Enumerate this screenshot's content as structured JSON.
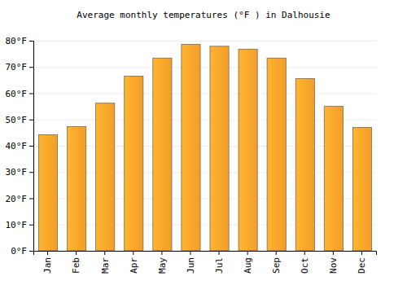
{
  "chart_data": {
    "type": "bar",
    "title": "Average monthly temperatures (°F ) in Dalhousie",
    "categories": [
      "Jan",
      "Feb",
      "Mar",
      "Apr",
      "May",
      "Jun",
      "Jul",
      "Aug",
      "Sep",
      "Oct",
      "Nov",
      "Dec"
    ],
    "values": [
      44.2,
      47.3,
      56.2,
      66.5,
      73.4,
      78.6,
      77.9,
      76.8,
      73.4,
      65.6,
      55.0,
      47.0
    ],
    "color": "#ffa62b",
    "ylim": [
      0,
      80
    ],
    "yticks": [
      {
        "value": 0,
        "label": "0°F"
      },
      {
        "value": 10,
        "label": "10°F"
      },
      {
        "value": 20,
        "label": "20°F"
      },
      {
        "value": 30,
        "label": "30°F"
      },
      {
        "value": 40,
        "label": "40°F"
      },
      {
        "value": 50,
        "label": "50°F"
      },
      {
        "value": 60,
        "label": "60°F"
      },
      {
        "value": 70,
        "label": "70°F"
      },
      {
        "value": 80,
        "label": "80°F"
      }
    ],
    "grid": true
  }
}
